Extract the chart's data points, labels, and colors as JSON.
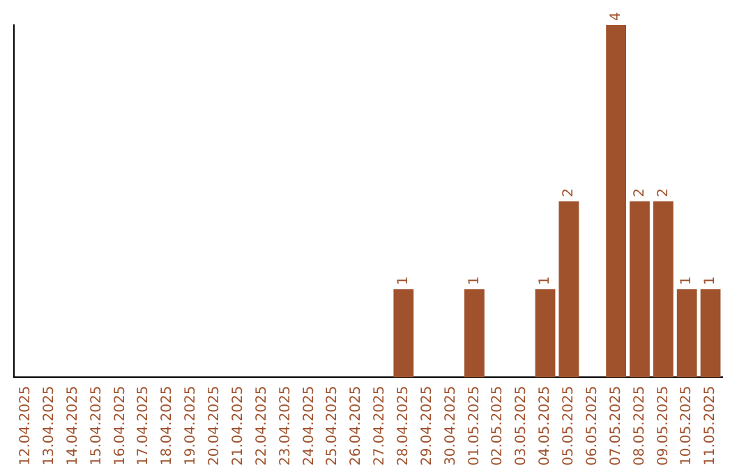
{
  "chart_data": {
    "type": "bar",
    "categories": [
      "12.04.2025",
      "13.04.2025",
      "14.04.2025",
      "15.04.2025",
      "16.04.2025",
      "17.04.2025",
      "18.04.2025",
      "19.04.2025",
      "20.04.2025",
      "21.04.2025",
      "22.04.2025",
      "23.04.2025",
      "24.04.2025",
      "25.04.2025",
      "26.04.2025",
      "27.04.2025",
      "28.04.2025",
      "29.04.2025",
      "30.04.2025",
      "01.05.2025",
      "02.05.2025",
      "03.05.2025",
      "04.05.2025",
      "05.05.2025",
      "06.05.2025",
      "07.05.2025",
      "08.05.2025",
      "09.05.2025",
      "10.05.2025",
      "11.05.2025"
    ],
    "values": [
      null,
      null,
      null,
      null,
      null,
      null,
      null,
      null,
      null,
      null,
      null,
      null,
      null,
      null,
      null,
      null,
      1,
      null,
      null,
      1,
      null,
      null,
      1,
      2,
      null,
      4,
      2,
      2,
      1,
      1
    ],
    "data_labels": true,
    "color": "#a0522d",
    "grid": false,
    "legend": false,
    "tick_labels": "x"
  }
}
